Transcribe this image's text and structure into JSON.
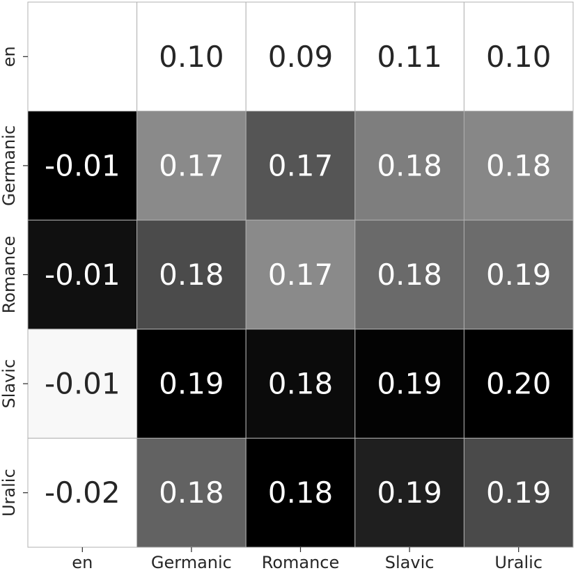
{
  "chart_data": {
    "type": "heatmap",
    "title": "",
    "xlabel": "",
    "ylabel": "",
    "x_labels": [
      "en",
      "Germanic",
      "Romance",
      "Slavic",
      "Uralic"
    ],
    "y_labels": [
      "en",
      "Germanic",
      "Romance",
      "Slavic",
      "Uralic"
    ],
    "values": [
      [
        null,
        0.1,
        0.09,
        0.11,
        0.1
      ],
      [
        -0.01,
        0.17,
        0.17,
        0.18,
        0.18
      ],
      [
        -0.01,
        0.18,
        0.17,
        0.18,
        0.19
      ],
      [
        -0.01,
        0.19,
        0.18,
        0.19,
        0.2
      ],
      [
        -0.02,
        0.18,
        0.18,
        0.19,
        0.19
      ]
    ],
    "labels": [
      [
        "",
        "0.10",
        "0.09",
        "0.11",
        "0.10"
      ],
      [
        "-0.01",
        "0.17",
        "0.17",
        "0.18",
        "0.18"
      ],
      [
        "-0.01",
        "0.18",
        "0.17",
        "0.18",
        "0.19"
      ],
      [
        "-0.01",
        "0.19",
        "0.18",
        "0.19",
        "0.20"
      ],
      [
        "-0.02",
        "0.18",
        "0.18",
        "0.19",
        "0.19"
      ]
    ],
    "fills": [
      [
        "#ffffff",
        "#ffffff",
        "#ffffff",
        "#ffffff",
        "#ffffff"
      ],
      [
        "#000000",
        "#8a8a8a",
        "#555555",
        "#7e7e7e",
        "#878787"
      ],
      [
        "#101010",
        "#4b4b4b",
        "#8a8a8a",
        "#6a6a6a",
        "#6c6c6c"
      ],
      [
        "#f8f8f8",
        "#000000",
        "#0b0b0b",
        "#030303",
        "#000000"
      ],
      [
        "#ffffff",
        "#626262",
        "#000000",
        "#1f1f1f",
        "#4a4a4a"
      ]
    ],
    "text_colors": [
      [
        "#262626",
        "#262626",
        "#262626",
        "#262626",
        "#262626"
      ],
      [
        "#ffffff",
        "#ffffff",
        "#ffffff",
        "#ffffff",
        "#ffffff"
      ],
      [
        "#ffffff",
        "#ffffff",
        "#ffffff",
        "#ffffff",
        "#ffffff"
      ],
      [
        "#262626",
        "#ffffff",
        "#ffffff",
        "#ffffff",
        "#ffffff"
      ],
      [
        "#262626",
        "#ffffff",
        "#ffffff",
        "#ffffff",
        "#ffffff"
      ]
    ],
    "grid": true,
    "grid_color": "#b0b0b0"
  }
}
